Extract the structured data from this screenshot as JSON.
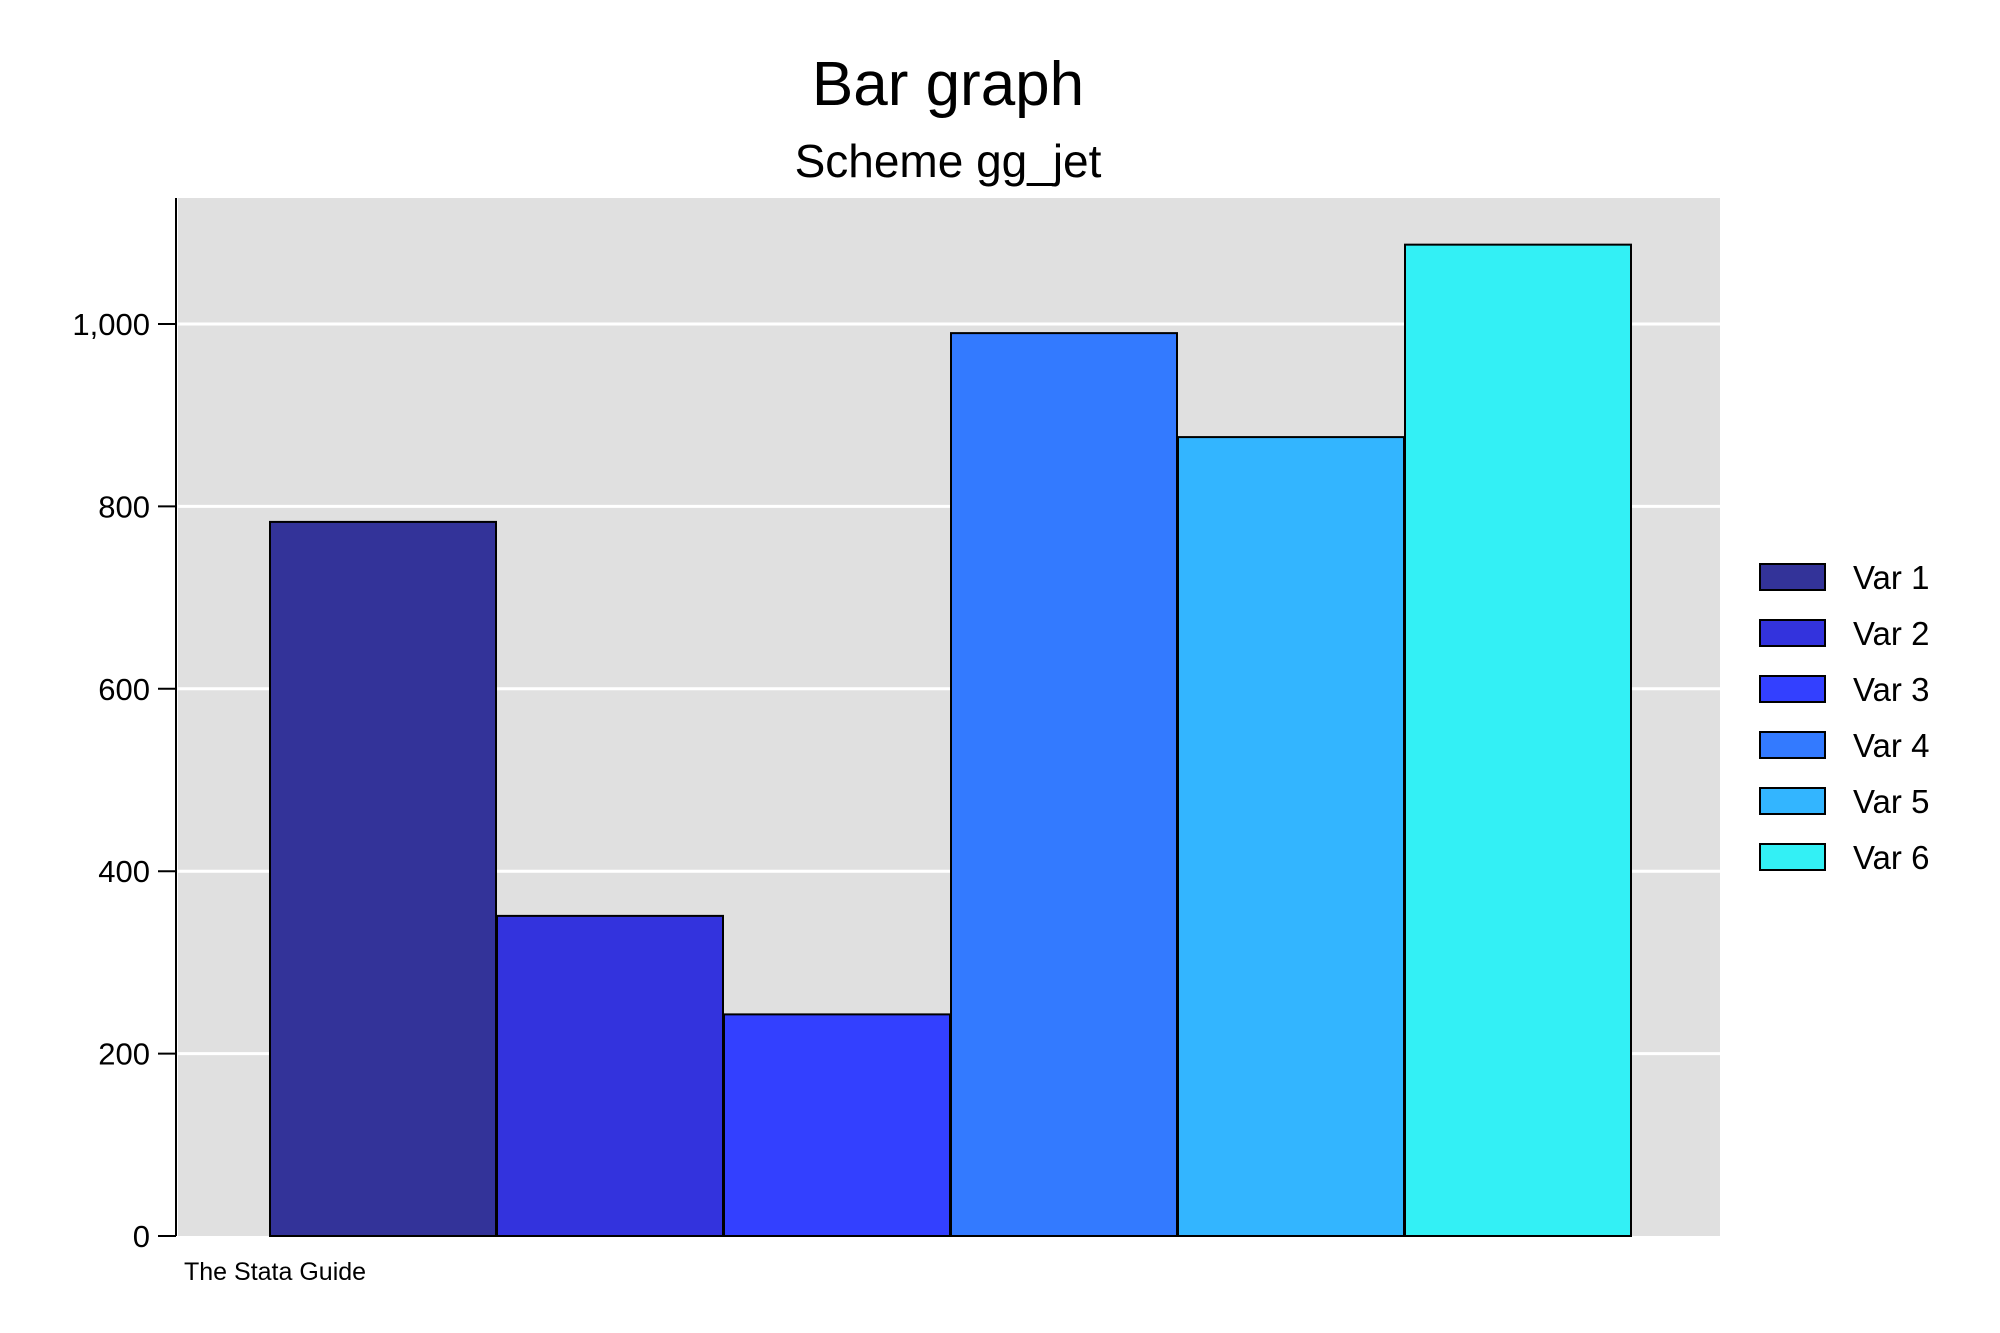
{
  "chart_data": {
    "type": "bar",
    "title": "Bar graph",
    "subtitle": "Scheme gg_jet",
    "note": "The Stata Guide",
    "xlabel": "",
    "ylabel": "",
    "ylim": [
      0,
      1130
    ],
    "yticks": [
      {
        "value": 0,
        "label": "0"
      },
      {
        "value": 200,
        "label": "200"
      },
      {
        "value": 400,
        "label": "400"
      },
      {
        "value": 600,
        "label": "600"
      },
      {
        "value": 800,
        "label": "800"
      },
      {
        "value": 1000,
        "label": "1,000"
      }
    ],
    "grid": true,
    "legend_position": "right",
    "series": [
      {
        "name": "Var 1",
        "value": 783,
        "color": "#333399"
      },
      {
        "name": "Var 2",
        "value": 351,
        "color": "#3333dd"
      },
      {
        "name": "Var 3",
        "value": 243,
        "color": "#3340ff"
      },
      {
        "name": "Var 4",
        "value": 990,
        "color": "#337aff"
      },
      {
        "name": "Var 5",
        "value": 876,
        "color": "#33b5ff"
      },
      {
        "name": "Var 6",
        "value": 1087,
        "color": "#33f0f5"
      }
    ],
    "colors": {
      "plot_background": "#e0e0e0",
      "gridline": "#ffffff",
      "bar_outline": "#000000"
    }
  }
}
